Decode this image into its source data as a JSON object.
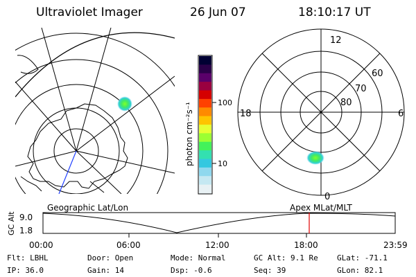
{
  "header": {
    "title": "Ultraviolet Imager",
    "date": "26 Jun 07",
    "time": "18:10:17 UT"
  },
  "colorbar": {
    "unit_label": "photon cm⁻²s⁻¹",
    "tick_100": "100",
    "tick_10": "10",
    "colors": [
      "#000033",
      "#2a0048",
      "#5a006a",
      "#9a0040",
      "#d50000",
      "#ff4000",
      "#ff8a00",
      "#ffc400",
      "#e6ff33",
      "#9cff33",
      "#43f25a",
      "#33e0b0",
      "#33c8e0",
      "#8fd8ee",
      "#c5e8f2",
      "#e8f1f4"
    ]
  },
  "left_map": {
    "label": "Geographic Lat/Lon"
  },
  "right_map": {
    "label": "Apex MLat/MLT",
    "mlt_12": "12",
    "mlt_18": "18",
    "mlt_6": "6",
    "mlt_0": "0",
    "lat_60": "60",
    "lat_70": "70",
    "lat_80": "80"
  },
  "altitude_plot": {
    "ylabel": "GC Alt",
    "y_top": "9.0",
    "y_bottom": "1.8",
    "x_ticks": [
      "00:00",
      "06:00",
      "12:00",
      "18:00",
      "23:59"
    ],
    "marker_color": "#e00000"
  },
  "status": {
    "filter": "Flt: LBHL",
    "ip": "IP: 36.0",
    "door": "Door: Open",
    "gain": "Gain: 14",
    "mode": "Mode: Normal",
    "dsp": "Dsp:   -0.6",
    "gc_alt": "GC Alt: 9.1 Re",
    "seq": "Seq: 39",
    "glat": "GLat: -71.1",
    "glon": "GLon:  82.1"
  }
}
